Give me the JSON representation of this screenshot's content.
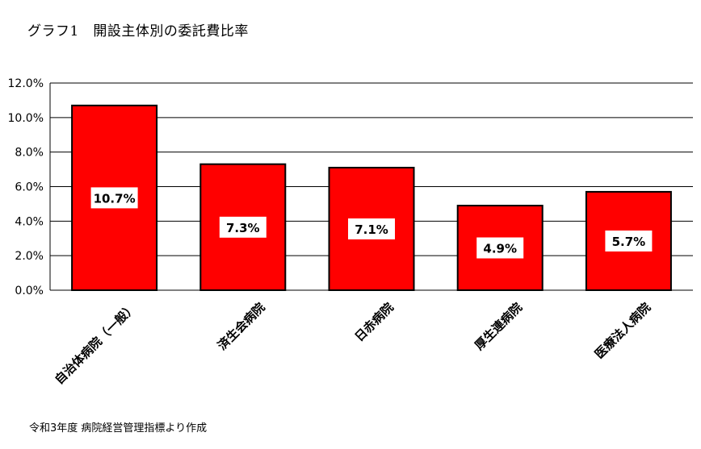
{
  "title": "グラフ1　開設主体別の委託費比率",
  "source": "令和3年度 病院経営管理指標より作成",
  "colors": {
    "bar": "#ff0000",
    "bar_outline": "#000000",
    "grid": "#000000",
    "label_bg": "#ffffff"
  },
  "chart_data": {
    "type": "bar",
    "categories": [
      "自治体病院（一般）",
      "済生会病院",
      "日赤病院",
      "厚生連病院",
      "医療法人病院"
    ],
    "values": [
      10.7,
      7.3,
      7.1,
      4.9,
      5.7
    ],
    "data_labels": [
      "10.7%",
      "7.3%",
      "7.1%",
      "4.9%",
      "5.7%"
    ],
    "yticks": [
      "0.0%",
      "2.0%",
      "4.0%",
      "6.0%",
      "8.0%",
      "10.0%",
      "12.0%"
    ],
    "ylim": [
      0,
      12
    ],
    "ytick_step": 2,
    "grid": true,
    "legend": "none",
    "xlabel": "",
    "ylabel": ""
  }
}
